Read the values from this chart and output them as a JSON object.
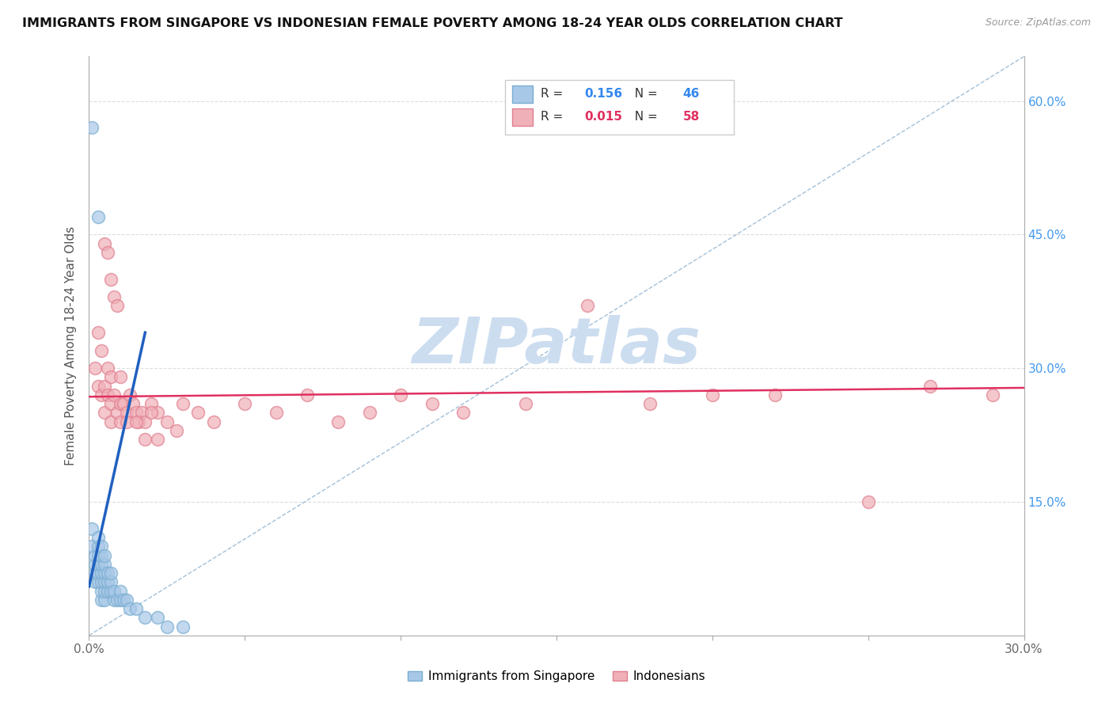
{
  "title": "IMMIGRANTS FROM SINGAPORE VS INDONESIAN FEMALE POVERTY AMONG 18-24 YEAR OLDS CORRELATION CHART",
  "source": "Source: ZipAtlas.com",
  "ylabel": "Female Poverty Among 18-24 Year Olds",
  "xlim": [
    0.0,
    0.3
  ],
  "ylim": [
    0.0,
    0.65
  ],
  "yticks": [
    0.0,
    0.15,
    0.3,
    0.45,
    0.6
  ],
  "right_ytick_labels": [
    "",
    "15.0%",
    "30.0%",
    "45.0%",
    "60.0%"
  ],
  "series1_color": "#a8c8e8",
  "series1_edge": "#7aaed0",
  "series2_color": "#f0b0b8",
  "series2_edge": "#e08090",
  "trend1_color": "#2060c0",
  "trend2_color": "#e03060",
  "diag_color": "#8ab0d0",
  "watermark_color": "#ccddf0",
  "legend_box_color": "#e8e8e8",
  "sg_x": [
    0.001,
    0.001,
    0.002,
    0.002,
    0.002,
    0.002,
    0.003,
    0.003,
    0.003,
    0.003,
    0.003,
    0.003,
    0.004,
    0.004,
    0.004,
    0.004,
    0.004,
    0.004,
    0.004,
    0.005,
    0.005,
    0.005,
    0.005,
    0.005,
    0.005,
    0.006,
    0.006,
    0.006,
    0.007,
    0.007,
    0.007,
    0.008,
    0.008,
    0.009,
    0.01,
    0.01,
    0.011,
    0.012,
    0.013,
    0.015,
    0.018,
    0.022,
    0.025,
    0.03,
    0.001,
    0.003
  ],
  "sg_y": [
    0.1,
    0.12,
    0.06,
    0.07,
    0.08,
    0.09,
    0.06,
    0.07,
    0.08,
    0.09,
    0.1,
    0.11,
    0.04,
    0.05,
    0.06,
    0.07,
    0.08,
    0.09,
    0.1,
    0.04,
    0.05,
    0.06,
    0.07,
    0.08,
    0.09,
    0.05,
    0.06,
    0.07,
    0.05,
    0.06,
    0.07,
    0.04,
    0.05,
    0.04,
    0.04,
    0.05,
    0.04,
    0.04,
    0.03,
    0.03,
    0.02,
    0.02,
    0.01,
    0.01,
    0.57,
    0.47
  ],
  "id_x": [
    0.002,
    0.003,
    0.003,
    0.004,
    0.004,
    0.005,
    0.005,
    0.006,
    0.006,
    0.007,
    0.007,
    0.007,
    0.008,
    0.009,
    0.01,
    0.01,
    0.011,
    0.012,
    0.013,
    0.014,
    0.015,
    0.016,
    0.017,
    0.018,
    0.02,
    0.022,
    0.025,
    0.028,
    0.03,
    0.035,
    0.04,
    0.05,
    0.06,
    0.07,
    0.08,
    0.09,
    0.1,
    0.11,
    0.12,
    0.14,
    0.16,
    0.18,
    0.2,
    0.22,
    0.25,
    0.27,
    0.29,
    0.005,
    0.006,
    0.007,
    0.008,
    0.009,
    0.01,
    0.012,
    0.015,
    0.018,
    0.02,
    0.022
  ],
  "id_y": [
    0.3,
    0.34,
    0.28,
    0.32,
    0.27,
    0.28,
    0.25,
    0.27,
    0.3,
    0.26,
    0.29,
    0.24,
    0.27,
    0.25,
    0.26,
    0.24,
    0.26,
    0.25,
    0.27,
    0.26,
    0.25,
    0.24,
    0.25,
    0.24,
    0.26,
    0.25,
    0.24,
    0.23,
    0.26,
    0.25,
    0.24,
    0.26,
    0.25,
    0.27,
    0.24,
    0.25,
    0.27,
    0.26,
    0.25,
    0.26,
    0.37,
    0.26,
    0.27,
    0.27,
    0.15,
    0.28,
    0.27,
    0.44,
    0.43,
    0.4,
    0.38,
    0.37,
    0.29,
    0.24,
    0.24,
    0.22,
    0.25,
    0.22
  ],
  "sg_trend_x": [
    0.0,
    0.018
  ],
  "sg_trend_y": [
    0.055,
    0.34
  ],
  "id_trend_x": [
    0.0,
    0.3
  ],
  "id_trend_y": [
    0.268,
    0.278
  ]
}
